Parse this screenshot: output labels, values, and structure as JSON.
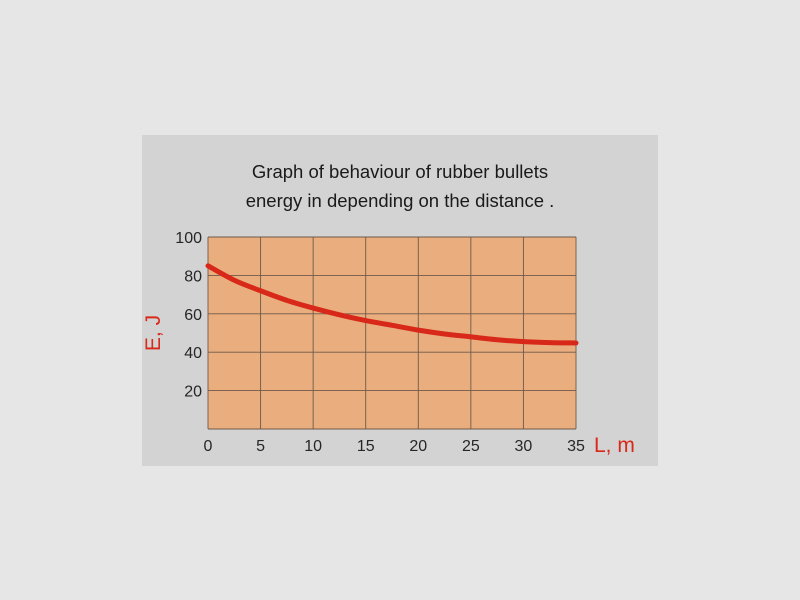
{
  "chart_data": {
    "type": "line",
    "title_lines": [
      "Graph of behaviour of rubber bullets",
      "energy in depending on the distance ."
    ],
    "xlabel": "L, m",
    "ylabel": "E, J",
    "xlim": [
      0,
      35
    ],
    "ylim": [
      0,
      100
    ],
    "x_ticks": [
      0,
      5,
      10,
      15,
      20,
      25,
      30,
      35
    ],
    "y_ticks": [
      20,
      40,
      60,
      80,
      100
    ],
    "grid": true,
    "series": [
      {
        "x": [
          0,
          2.5,
          5,
          7.5,
          10,
          12.5,
          15,
          17.5,
          20,
          22.5,
          25,
          27.5,
          30,
          32.5,
          35
        ],
        "y": [
          85,
          77.5,
          72,
          67,
          63,
          59.5,
          56.5,
          54,
          51.5,
          49.5,
          48,
          46.5,
          45.5,
          45,
          44.8
        ]
      }
    ],
    "colors": {
      "plot_background": "#e9ad7e",
      "grid": "#6e5a4a",
      "line": "#d8281a",
      "axis_label": "#d8281a"
    }
  }
}
